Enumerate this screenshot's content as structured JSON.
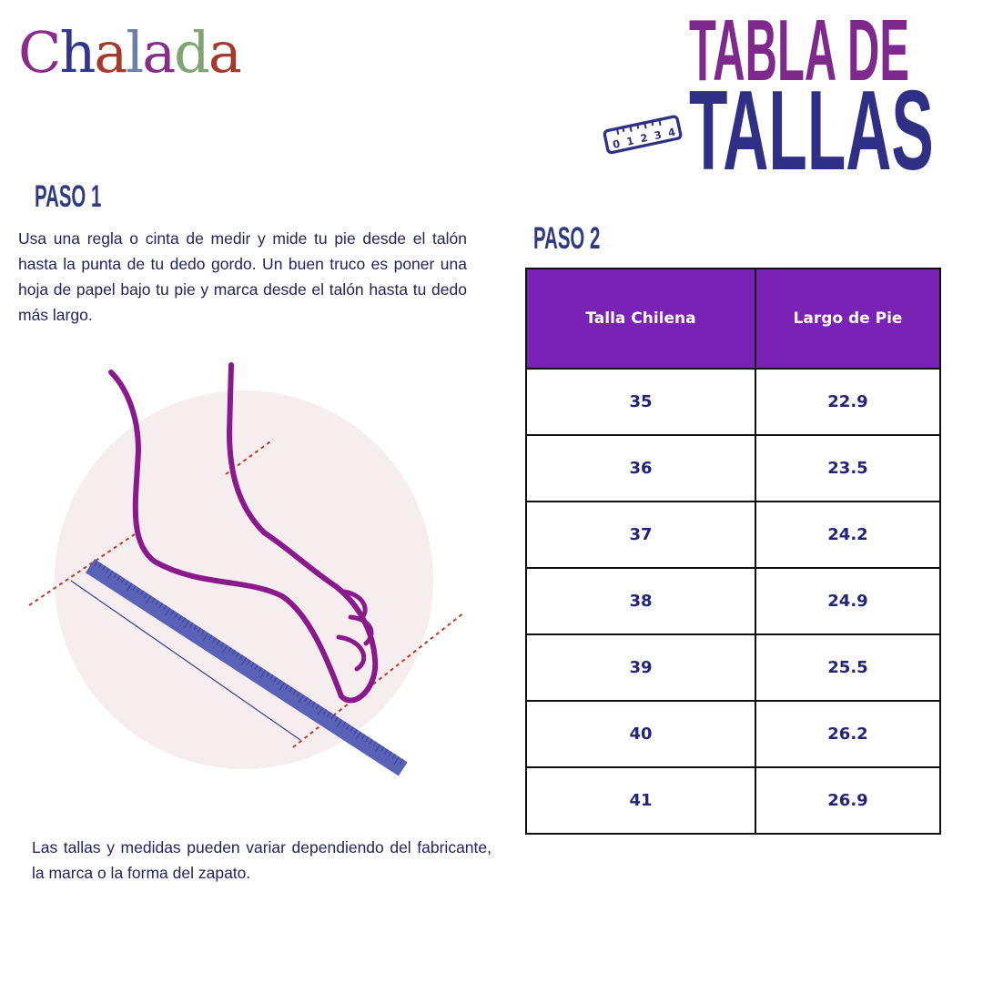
{
  "brand": {
    "logo_text": "Chalada",
    "letters": [
      "C",
      "h",
      "a",
      "l",
      "a",
      "d",
      "a"
    ],
    "letter_colors": [
      "#8a2c8c",
      "#2f3590",
      "#a33a2c",
      "#6c7fa8",
      "#8a2c8c",
      "#7fa474",
      "#a33a2c"
    ]
  },
  "title": {
    "line1": "TABLA DE",
    "line2": "TALLAS",
    "ruler_digits": [
      "0",
      "1",
      "2",
      "3",
      "4"
    ]
  },
  "step1": {
    "heading": "PASO 1",
    "text": "Usa una regla o cinta de medir y mide tu pie desde el talón hasta la punta de tu dedo gordo. Un buen truco es poner una hoja de papel bajo tu pie y marca desde el talón hasta tu dedo más largo."
  },
  "step2": {
    "heading": "PASO 2"
  },
  "table": {
    "headers": [
      "Talla Chilena",
      "Largo de Pie"
    ],
    "rows": [
      [
        "35",
        "22.9"
      ],
      [
        "36",
        "23.5"
      ],
      [
        "37",
        "24.2"
      ],
      [
        "38",
        "24.9"
      ],
      [
        "39",
        "25.5"
      ],
      [
        "40",
        "26.2"
      ],
      [
        "41",
        "26.9"
      ]
    ]
  },
  "note": "Las tallas y medidas pueden variar dependiendo del fabricante, la marca o la forma del zapato.",
  "colors": {
    "header_bg": "#7b22b6",
    "title_purple": "#7e2a8c",
    "title_navy": "#2f2f86",
    "foot": "#8a1a8c",
    "ruler": "#5a62b8",
    "circle": "#f6eeee",
    "dashes": "#c0392b"
  }
}
